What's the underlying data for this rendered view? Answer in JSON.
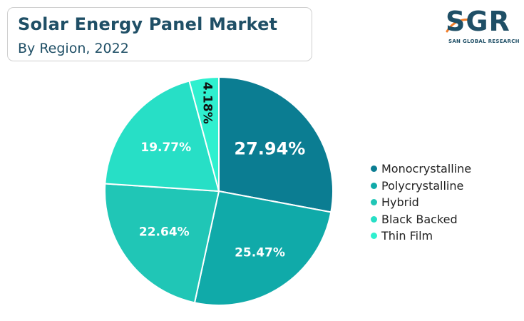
{
  "header": {
    "title": "Solar Energy Panel Market",
    "subtitle": "By Region, 2022"
  },
  "logo": {
    "letters": "SGR",
    "tagline": "SAN GLOBAL RESEARCH",
    "accent_color": "#f07d2a"
  },
  "chart_data": {
    "type": "pie",
    "title": "Solar Energy Panel Market",
    "subtitle": "By Region, 2022",
    "legend_position": "right",
    "slices": [
      {
        "name": "Monocrystalline",
        "value": 27.94,
        "label": "27.94%",
        "color": "#0b7d92"
      },
      {
        "name": "Polycrystalline",
        "value": 25.47,
        "label": "25.47%",
        "color": "#10aaa9"
      },
      {
        "name": "Hybrid",
        "value": 22.64,
        "label": "22.64%",
        "color": "#20c6b6"
      },
      {
        "name": "Black Backed",
        "value": 19.77,
        "label": "19.77%",
        "color": "#27dfc6"
      },
      {
        "name": "Thin Film",
        "value": 4.18,
        "label": "4.18%",
        "color": "#2ff0cf"
      }
    ]
  }
}
